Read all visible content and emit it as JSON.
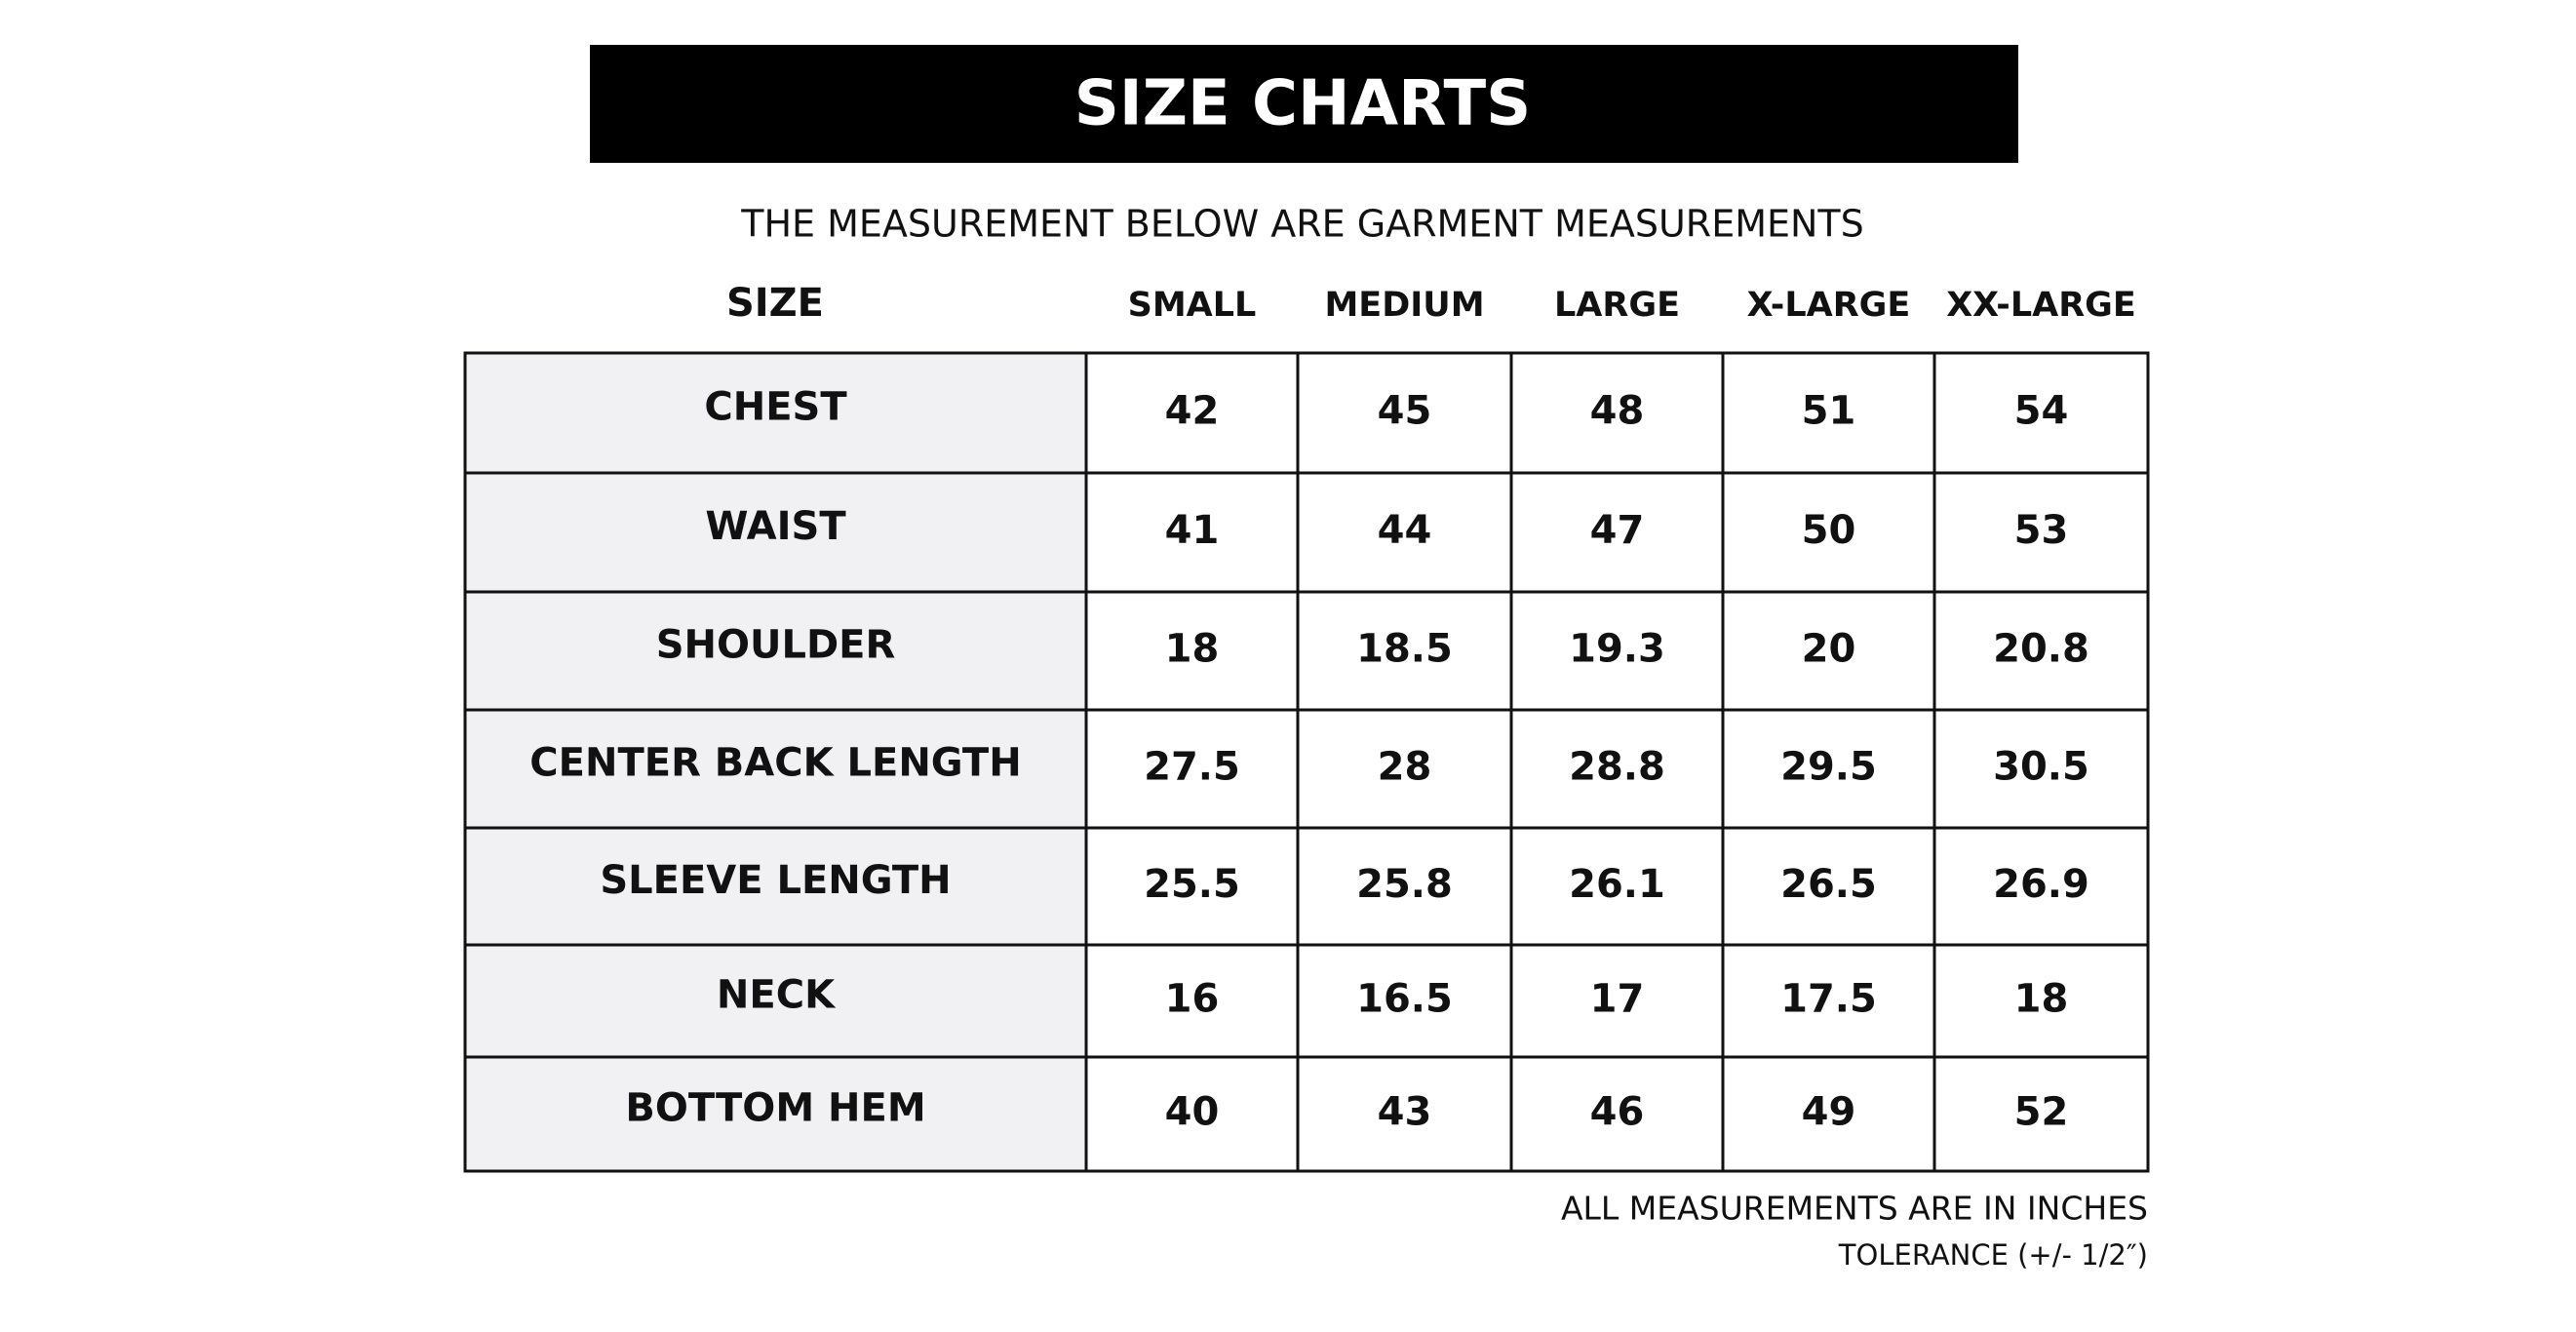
{
  "header": {
    "title": "SIZE CHARTS",
    "subtitle": "THE MEASUREMENT BELOW ARE GARMENT MEASUREMENTS"
  },
  "table": {
    "size_label": "SIZE",
    "columns": [
      "SMALL",
      "MEDIUM",
      "LARGE",
      "X-LARGE",
      "XX-LARGE"
    ],
    "rows": [
      {
        "label": "CHEST",
        "values": [
          42,
          45,
          48,
          51,
          54
        ]
      },
      {
        "label": "WAIST",
        "values": [
          41,
          44,
          47,
          50,
          53
        ]
      },
      {
        "label": "SHOULDER",
        "values": [
          18,
          18.5,
          19.3,
          20,
          20.8
        ]
      },
      {
        "label": "CENTER BACK LENGTH",
        "values": [
          27.5,
          28,
          28.8,
          29.5,
          30.5
        ]
      },
      {
        "label": "SLEEVE LENGTH",
        "values": [
          25.5,
          25.8,
          26.1,
          26.5,
          26.9
        ]
      },
      {
        "label": "NECK",
        "values": [
          16,
          16.5,
          17,
          17.5,
          18
        ]
      },
      {
        "label": "BOTTOM HEM",
        "values": [
          40,
          43,
          46,
          49,
          52
        ]
      }
    ]
  },
  "footer": {
    "units": "ALL MEASUREMENTS ARE IN INCHES",
    "tolerance": "TOLERANCE (+/- 1/2″)"
  }
}
